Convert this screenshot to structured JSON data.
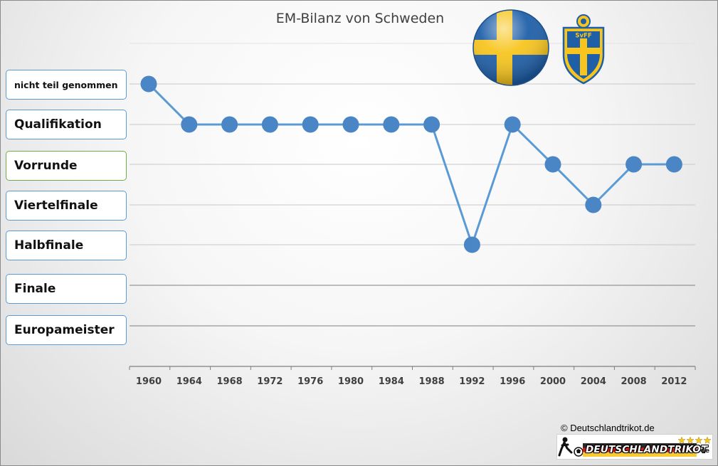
{
  "colors": {
    "line": "#5b9bd5",
    "marker": "#4a86c5",
    "grid": "#c8c8c8",
    "box_border": "#5b9bd5",
    "box_border_highlight": "#70ad47",
    "flag_blue": "#1f5fa8",
    "flag_yellow": "#f7c51e"
  },
  "chart_data": {
    "type": "line",
    "title": "EM-Bilanz von Schweden",
    "x": [
      "1960",
      "1964",
      "1968",
      "1972",
      "1976",
      "1980",
      "1984",
      "1988",
      "1992",
      "1996",
      "2000",
      "2004",
      "2008",
      "2012"
    ],
    "y_categories": [
      "nicht teil genommen",
      "Qualifikation",
      "Vorrunde",
      "Viertelfinale",
      "Halbfinale",
      "Finale",
      "Europameister"
    ],
    "series": [
      {
        "values": [
          "nicht teil genommen",
          "Qualifikation",
          "Qualifikation",
          "Qualifikation",
          "Qualifikation",
          "Qualifikation",
          "Qualifikation",
          "Qualifikation",
          "Halbfinale",
          "Qualifikation",
          "Vorrunde",
          "Viertelfinale",
          "Vorrunde",
          "Vorrunde"
        ]
      }
    ],
    "xlabel": "",
    "ylabel": "",
    "grid": true,
    "legend": "none"
  },
  "logos": {
    "flag_icon": "swedish-flag-ball",
    "crest_icon": "svff-crest",
    "crest_text": "SvFF"
  },
  "footer": {
    "copyright": "© Deutschlandtrikot.de",
    "brand": "DEUTSCHLANDTRIKOT",
    "brand_suffix": ".de"
  }
}
